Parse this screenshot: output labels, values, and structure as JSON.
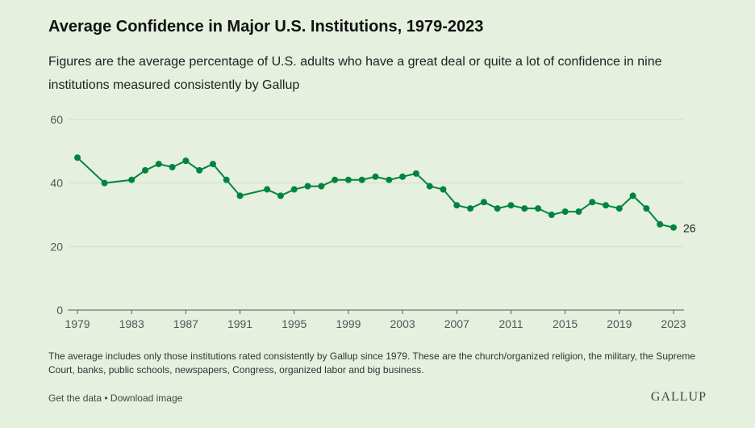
{
  "chart_data": {
    "type": "line",
    "title": "Average Confidence in Major U.S. Institutions, 1979-2023",
    "subtitle": "Figures are the average percentage of U.S. adults who have a great deal or quite a lot of confidence in nine institutions measured consistently by Gallup",
    "xlabel": "",
    "ylabel": "",
    "xlim": [
      1979,
      2023
    ],
    "ylim": [
      0,
      60
    ],
    "xticks": [
      "1979",
      "1983",
      "1987",
      "1991",
      "1995",
      "1999",
      "2003",
      "2007",
      "2011",
      "2015",
      "2019",
      "2023"
    ],
    "yticks": [
      "0",
      "20",
      "40",
      "60"
    ],
    "grid": true,
    "color": "#00843d",
    "series": [
      {
        "name": "Average confidence",
        "x": [
          1979,
          1981,
          1983,
          1984,
          1985,
          1986,
          1987,
          1988,
          1989,
          1990,
          1991,
          1993,
          1994,
          1995,
          1996,
          1997,
          1998,
          1999,
          2000,
          2001,
          2002,
          2003,
          2004,
          2005,
          2006,
          2007,
          2008,
          2009,
          2010,
          2011,
          2012,
          2013,
          2014,
          2015,
          2016,
          2017,
          2018,
          2019,
          2020,
          2021,
          2022,
          2023
        ],
        "y": [
          48,
          40,
          41,
          44,
          46,
          45,
          47,
          44,
          46,
          41,
          36,
          38,
          36,
          38,
          39,
          39,
          41,
          41,
          41,
          42,
          41,
          42,
          43,
          39,
          38,
          33,
          32,
          34,
          32,
          33,
          32,
          32,
          30,
          31,
          31,
          34,
          33,
          32,
          36,
          32,
          27,
          26
        ]
      }
    ],
    "annotations": [
      {
        "text": "26",
        "x": 2023,
        "y": 26
      }
    ]
  },
  "footer": {
    "note": "The average includes only those institutions rated consistently by Gallup since 1979. These are the church/organized religion, the military, the Supreme Court, banks, public schools, newspapers, Congress, organized labor and big business.",
    "get_data": "Get the data",
    "separator": " • ",
    "download": "Download image",
    "logo": "GALLUP"
  }
}
